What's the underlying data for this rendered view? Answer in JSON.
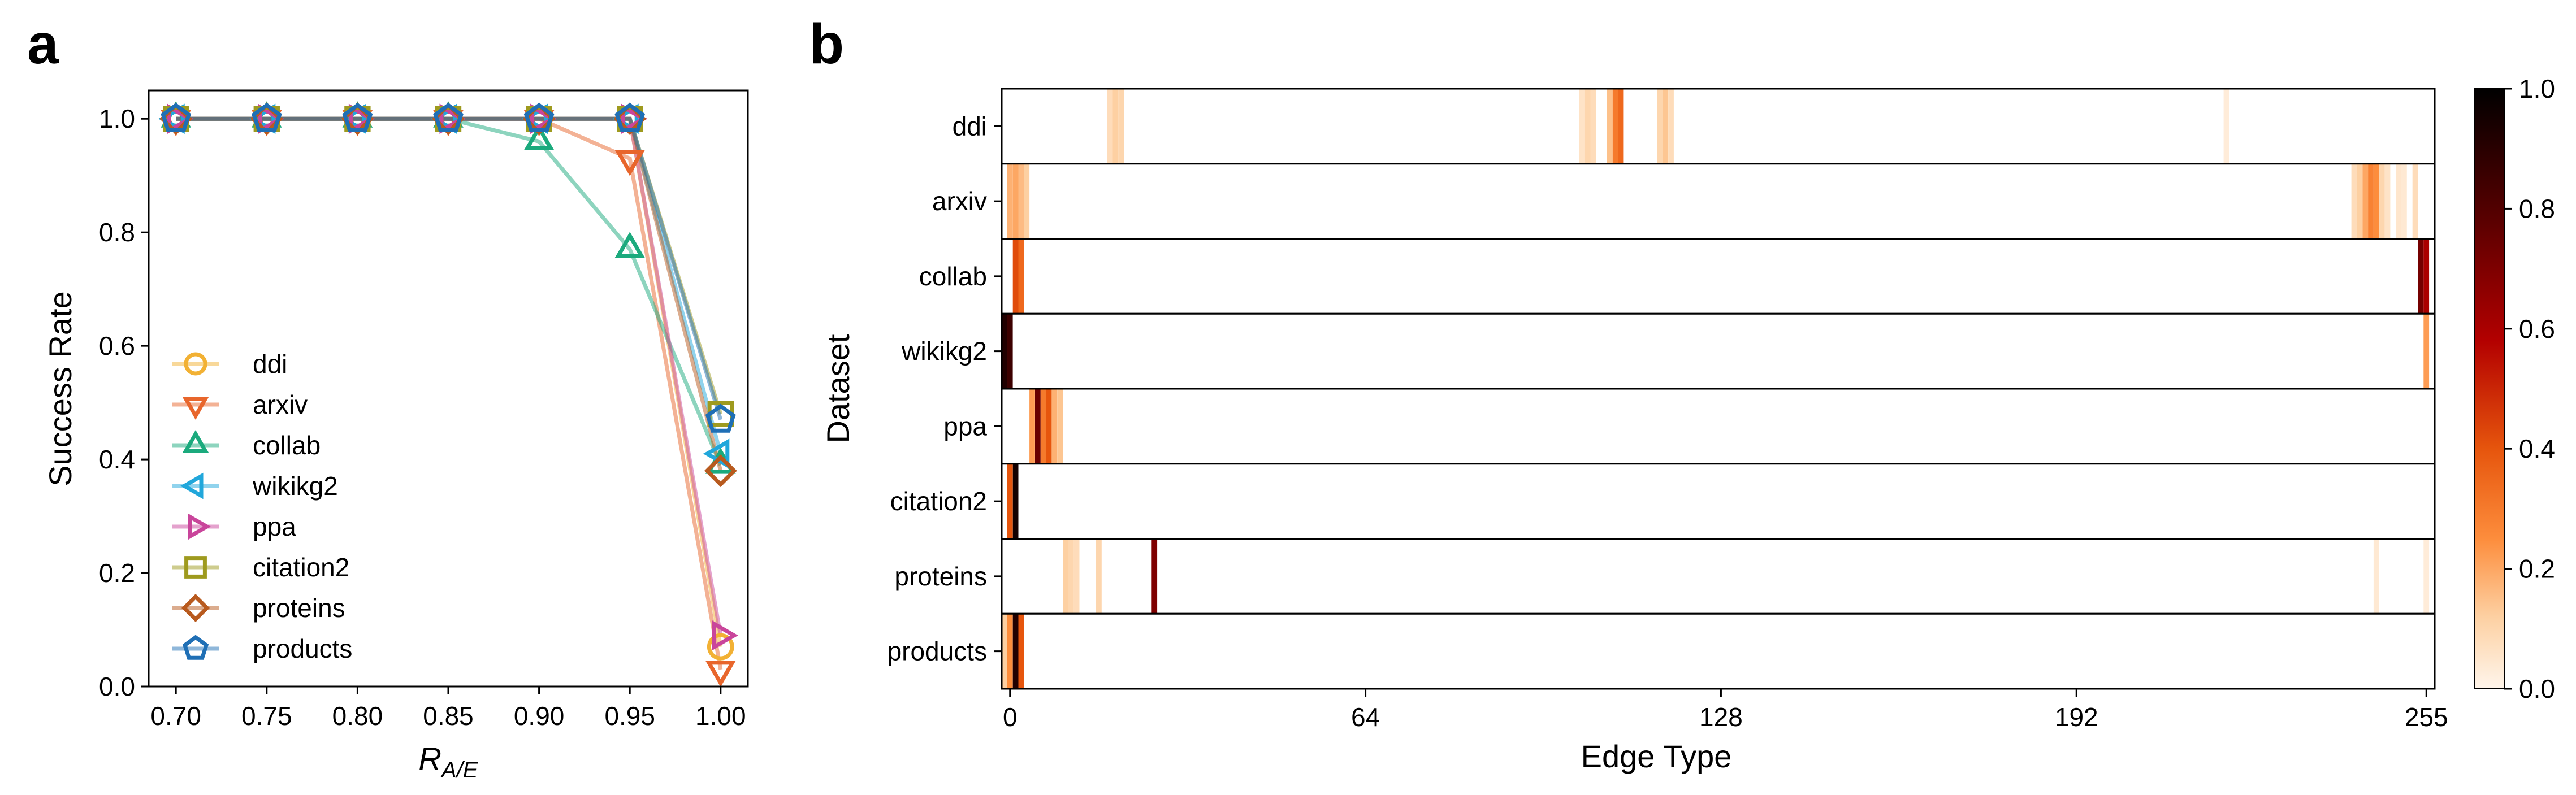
{
  "panels": {
    "a": {
      "letter": "a"
    },
    "b": {
      "letter": "b"
    }
  },
  "chart_data": [
    {
      "type": "line",
      "panel": "a",
      "xlabel_main": "R",
      "xlabel_sub": "A/E",
      "ylabel": "Success Rate",
      "x": [
        0.7,
        0.75,
        0.8,
        0.85,
        0.9,
        0.95,
        1.0
      ],
      "x_ticks": [
        "0.70",
        "0.75",
        "0.80",
        "0.85",
        "0.90",
        "0.95",
        "1.00"
      ],
      "y_ticks": [
        "0.0",
        "0.2",
        "0.4",
        "0.6",
        "0.8",
        "1.0"
      ],
      "xlim": [
        0.685,
        1.015
      ],
      "ylim": [
        0.0,
        1.05
      ],
      "legend_position": "lower-left",
      "series": [
        {
          "name": "ddi",
          "color": "#F2B134",
          "marker": "circle",
          "values": [
            1.0,
            1.0,
            1.0,
            1.0,
            1.0,
            1.0,
            0.07
          ]
        },
        {
          "name": "arxiv",
          "color": "#E8662C",
          "marker": "triangle-down",
          "values": [
            1.0,
            1.0,
            1.0,
            1.0,
            1.0,
            0.93,
            0.03
          ]
        },
        {
          "name": "collab",
          "color": "#1BAA7D",
          "marker": "triangle-up",
          "values": [
            1.0,
            1.0,
            1.0,
            1.0,
            0.96,
            0.77,
            0.39
          ]
        },
        {
          "name": "wikikg2",
          "color": "#21A7DB",
          "marker": "triangle-left",
          "values": [
            1.0,
            1.0,
            1.0,
            1.0,
            1.0,
            1.0,
            0.41
          ]
        },
        {
          "name": "ppa",
          "color": "#C9459B",
          "marker": "triangle-right",
          "values": [
            1.0,
            1.0,
            1.0,
            1.0,
            1.0,
            1.0,
            0.09
          ]
        },
        {
          "name": "citation2",
          "color": "#9E9A1E",
          "marker": "square",
          "values": [
            1.0,
            1.0,
            1.0,
            1.0,
            1.0,
            1.0,
            0.48
          ]
        },
        {
          "name": "proteins",
          "color": "#B85A1E",
          "marker": "diamond",
          "values": [
            1.0,
            1.0,
            1.0,
            1.0,
            1.0,
            1.0,
            0.38
          ]
        },
        {
          "name": "products",
          "color": "#1F6FB5",
          "marker": "pentagon",
          "values": [
            1.0,
            1.0,
            1.0,
            1.0,
            1.0,
            1.0,
            0.47
          ]
        }
      ]
    },
    {
      "type": "heatmap",
      "panel": "b",
      "xlabel": "Edge Type",
      "ylabel": "Dataset",
      "x_ticks": [
        0,
        64,
        128,
        192,
        255
      ],
      "xlim": [
        -1,
        257
      ],
      "colormap": "Oranges-Reds-Black",
      "colorbar_ticks": [
        "0.0",
        "0.2",
        "0.4",
        "0.6",
        "0.8",
        "1.0"
      ],
      "rows": [
        {
          "name": "ddi",
          "cells": [
            [
              18,
              0.08
            ],
            [
              19,
              0.12
            ],
            [
              20,
              0.1
            ],
            [
              103,
              0.06
            ],
            [
              104,
              0.1
            ],
            [
              105,
              0.08
            ],
            [
              108,
              0.15
            ],
            [
              109,
              0.3
            ],
            [
              110,
              0.35
            ],
            [
              117,
              0.1
            ],
            [
              118,
              0.14
            ],
            [
              119,
              0.08
            ],
            [
              219,
              0.03
            ]
          ]
        },
        {
          "name": "arxiv",
          "cells": [
            [
              0,
              0.18
            ],
            [
              1,
              0.2
            ],
            [
              2,
              0.16
            ],
            [
              3,
              0.12
            ],
            [
              242,
              0.08
            ],
            [
              243,
              0.12
            ],
            [
              244,
              0.2
            ],
            [
              245,
              0.28
            ],
            [
              246,
              0.25
            ],
            [
              247,
              0.1
            ],
            [
              248,
              0.06
            ],
            [
              250,
              0.05
            ],
            [
              251,
              0.04
            ],
            [
              253,
              0.08
            ]
          ]
        },
        {
          "name": "collab",
          "cells": [
            [
              1,
              0.42
            ],
            [
              2,
              0.35
            ],
            [
              254,
              0.72
            ],
            [
              255,
              0.6
            ]
          ]
        },
        {
          "name": "wikikg2",
          "cells": [
            [
              -1,
              0.92
            ],
            [
              0,
              0.85
            ],
            [
              255,
              0.22
            ]
          ]
        },
        {
          "name": "ppa",
          "cells": [
            [
              4,
              0.22
            ],
            [
              5,
              0.75
            ],
            [
              6,
              0.3
            ],
            [
              7,
              0.4
            ],
            [
              8,
              0.18
            ],
            [
              9,
              0.14
            ]
          ]
        },
        {
          "name": "citation2",
          "cells": [
            [
              1,
              0.95
            ],
            [
              0,
              0.4
            ]
          ]
        },
        {
          "name": "proteins",
          "cells": [
            [
              10,
              0.12
            ],
            [
              11,
              0.1
            ],
            [
              12,
              0.08
            ],
            [
              16,
              0.1
            ],
            [
              26,
              0.7
            ],
            [
              246,
              0.04
            ],
            [
              255,
              0.03
            ]
          ]
        },
        {
          "name": "products",
          "cells": [
            [
              -1,
              0.12
            ],
            [
              0,
              0.25
            ],
            [
              1,
              0.92
            ],
            [
              2,
              0.4
            ]
          ]
        }
      ]
    }
  ]
}
